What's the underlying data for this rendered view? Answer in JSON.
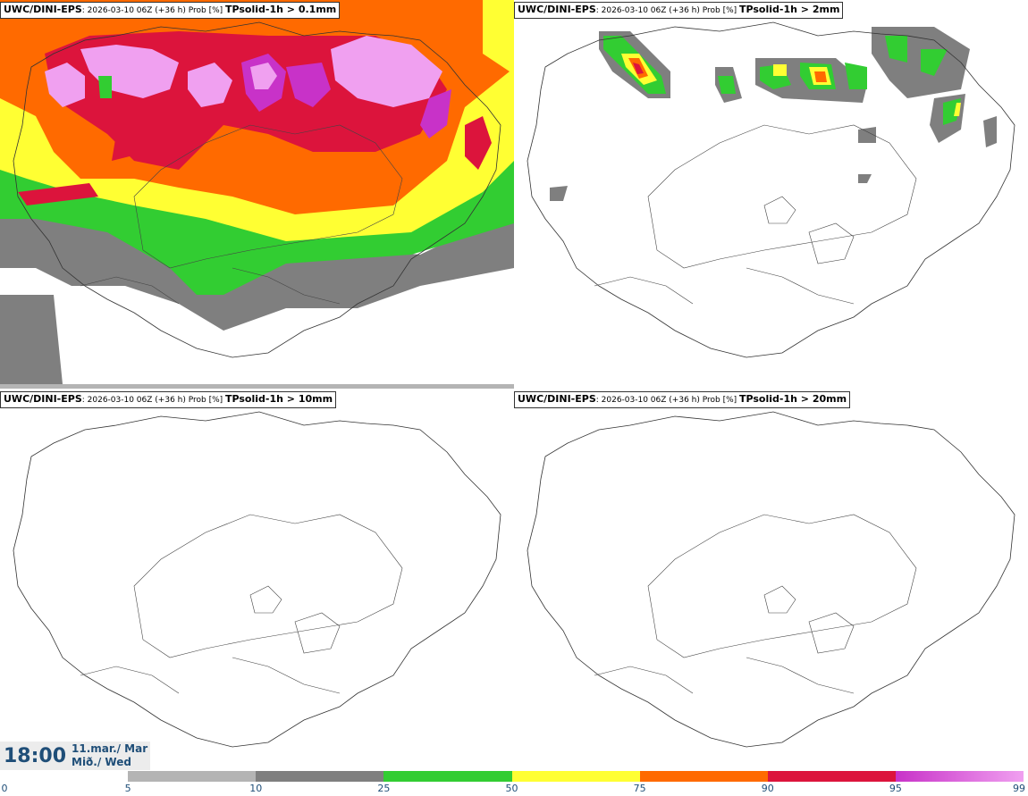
{
  "panels": [
    {
      "model": "UWC/DINI-EPS",
      "info": ": 2026-03-10 06Z (+36 h) Prob [%] ",
      "threshold": "TPsolid-1h > 0.1mm"
    },
    {
      "model": "UWC/DINI-EPS",
      "info": ": 2026-03-10 06Z (+36 h) Prob [%] ",
      "threshold": "TPsolid-1h > 2mm"
    },
    {
      "model": "UWC/DINI-EPS",
      "info": ": 2026-03-10 06Z (+36 h) Prob [%] ",
      "threshold": "TPsolid-1h > 10mm"
    },
    {
      "model": "UWC/DINI-EPS",
      "info": ": 2026-03-10 06Z (+36 h) Prob [%] ",
      "threshold": "TPsolid-1h > 20mm"
    }
  ],
  "valid_time": {
    "time": "18:00",
    "date": "11.mar./ Mar",
    "weekday": "Mið./ Wed"
  },
  "colorbar": {
    "ticks": [
      "0",
      "5",
      "10",
      "25",
      "50",
      "75",
      "90",
      "95",
      "99"
    ],
    "colors": [
      "#ffffff",
      "#b4b4b4",
      "#7f7f7f",
      "#32cd32",
      "#ffff33",
      "#ff6a00",
      "#dc143c",
      "#c832c8",
      "#f0a0f0"
    ]
  }
}
